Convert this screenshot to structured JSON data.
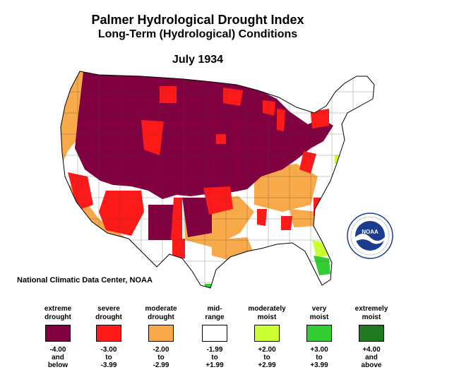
{
  "title": {
    "line1": "Palmer Hydrological Drought Index",
    "line2": "Long-Term (Hydrological) Conditions",
    "period": "July 1934"
  },
  "credit": "National Climatic Data Center, NOAA",
  "logo": {
    "text": "NOAA",
    "ring_text": "NATIONAL OCEANIC AND ATMOSPHERIC ADMINISTRATION · U.S. DEPARTMENT OF COMMERCE"
  },
  "legend": [
    {
      "label1": "extreme",
      "label2": "drought",
      "color": "#800040",
      "range1": "-4.00",
      "range2": "and",
      "range3": "below"
    },
    {
      "label1": "severe",
      "label2": "drought",
      "color": "#ff1a1a",
      "range1": "-3.00",
      "range2": "to",
      "range3": "-3.99"
    },
    {
      "label1": "moderate",
      "label2": "drought",
      "color": "#f8a94a",
      "range1": "-2.00",
      "range2": "to",
      "range3": "-2.99"
    },
    {
      "label1": "mid-",
      "label2": "range",
      "color": "#ffffff",
      "range1": "-1.99",
      "range2": "to",
      "range3": "+1.99"
    },
    {
      "label1": "moderately",
      "label2": "moist",
      "color": "#ccff33",
      "range1": "+2.00",
      "range2": "to",
      "range3": "+2.99"
    },
    {
      "label1": "very",
      "label2": "moist",
      "color": "#33cc33",
      "range1": "+3.00",
      "range2": "to",
      "range3": "+3.99"
    },
    {
      "label1": "extremely",
      "label2": "moist",
      "color": "#1f7a1f",
      "range1": "+4.00",
      "range2": "and",
      "range3": "above"
    }
  ]
}
